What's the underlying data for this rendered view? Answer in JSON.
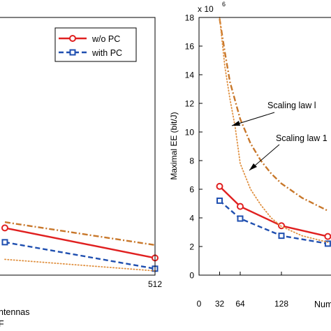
{
  "chart_data": [
    {
      "type": "line",
      "panel": "left",
      "xlabel": "ntennas",
      "xlabel2": "F",
      "x_tick_labels": [
        "512"
      ],
      "legend": {
        "placement": "top-right",
        "entries": [
          "w/o PC",
          "with PC"
        ]
      },
      "series": [
        {
          "name": "w/o PC",
          "color": "#e02020",
          "style": "solid-circle",
          "points": [
            [
              0,
              3.3
            ],
            [
              512,
              1.2
            ]
          ]
        },
        {
          "name": "with PC",
          "color": "#1f4fb0",
          "style": "dashed-square",
          "points": [
            [
              0,
              2.3
            ],
            [
              512,
              0.45
            ]
          ]
        },
        {
          "color": "#c8772a",
          "style": "dashdot",
          "points": [
            [
              0,
              3.7
            ],
            [
              512,
              2.1
            ]
          ]
        },
        {
          "color": "#e09040",
          "style": "dotted",
          "points": [
            [
              0,
              1.1
            ],
            [
              512,
              0.3
            ]
          ]
        }
      ]
    },
    {
      "type": "line",
      "panel": "right",
      "ylabel": "Maximal EE (bit/J)",
      "y_multiplier": "x 10",
      "y_multiplier_exp": "6",
      "ylim": [
        0,
        18
      ],
      "y_ticks": [
        "0",
        "2",
        "4",
        "6",
        "8",
        "10",
        "12",
        "14",
        "16",
        "18"
      ],
      "xlim": [
        0,
        200
      ],
      "x_ticks": [
        "0",
        "32",
        "64",
        "128"
      ],
      "xlabel": "Num",
      "grid": false,
      "annotations": [
        {
          "text": "Scaling law l",
          "target_series": "dashdot"
        },
        {
          "text": "Scaling law 1",
          "target_series": "dotted"
        }
      ],
      "series": [
        {
          "name": "w/o PC",
          "color": "#e02020",
          "style": "solid-circle",
          "points": [
            [
              32,
              6.2
            ],
            [
              64,
              4.8
            ],
            [
              128,
              3.45
            ],
            [
              200,
              2.7
            ]
          ]
        },
        {
          "name": "with PC",
          "color": "#1f4fb0",
          "style": "dashed-square",
          "points": [
            [
              32,
              5.2
            ],
            [
              64,
              3.95
            ],
            [
              128,
              2.75
            ],
            [
              200,
              2.2
            ]
          ]
        },
        {
          "color": "#c8772a",
          "style": "dashdot",
          "points": [
            [
              32,
              17.9
            ],
            [
              40,
              15.6
            ],
            [
              48,
              13.5
            ],
            [
              64,
              10.9
            ],
            [
              80,
              9.2
            ],
            [
              96,
              8.0
            ],
            [
              112,
              7.1
            ],
            [
              128,
              6.4
            ],
            [
              160,
              5.4
            ],
            [
              200,
              4.5
            ]
          ]
        },
        {
          "color": "#e09040",
          "style": "dotted",
          "points": [
            [
              32,
              18.0
            ],
            [
              40,
              14.6
            ],
            [
              48,
              12.3
            ],
            [
              56,
              10.4
            ],
            [
              64,
              7.8
            ],
            [
              80,
              6.0
            ],
            [
              96,
              4.9
            ],
            [
              112,
              4.0
            ],
            [
              128,
              3.4
            ],
            [
              160,
              2.75
            ],
            [
              200,
              2.3
            ]
          ]
        }
      ]
    }
  ]
}
